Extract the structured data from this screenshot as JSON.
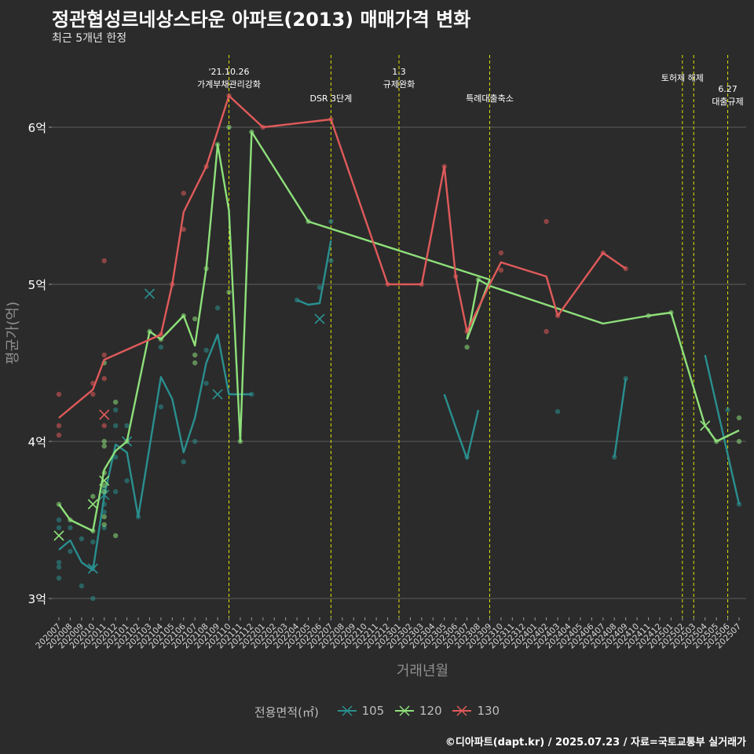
{
  "title": "정관협성르네상스타운 아파트(2013) 매매가격 변화",
  "subtitle": "최근 5개년 한정",
  "caption": "©디아파트(dapt.kr) / 2025.07.23 / 자료=국토교통부 실거래가",
  "legend": {
    "title": "전용면적(㎡)",
    "items": [
      {
        "label": "105",
        "color": "#2a8f8f"
      },
      {
        "label": "120",
        "color": "#8ee07a"
      },
      {
        "label": "130",
        "color": "#e05a5a"
      }
    ]
  },
  "chart_data": {
    "type": "line",
    "xlabel": "거래년월",
    "ylabel": "평균가(억)",
    "ylim": [
      2.88,
      6.5
    ],
    "grid": true,
    "legend_position": "bottom",
    "categories": [
      "202007",
      "202008",
      "202009",
      "202010",
      "202011",
      "202012",
      "202101",
      "202102",
      "202103",
      "202104",
      "202105",
      "202106",
      "202107",
      "202108",
      "202109",
      "202110",
      "202111",
      "202112",
      "202201",
      "202202",
      "202203",
      "202204",
      "202205",
      "202206",
      "202207",
      "202208",
      "202209",
      "202210",
      "202211",
      "202212",
      "202301",
      "202302",
      "202303",
      "202304",
      "202305",
      "202306",
      "202307",
      "202308",
      "202309",
      "202310",
      "202311",
      "202312",
      "202401",
      "202402",
      "202403",
      "202404",
      "202405",
      "202406",
      "202407",
      "202408",
      "202409",
      "202410",
      "202411",
      "202412",
      "202501",
      "202502",
      "202503",
      "202504",
      "202505",
      "202506",
      "202507"
    ],
    "y_ticks": [
      {
        "value": 3,
        "label": "3억"
      },
      {
        "value": 4,
        "label": "4억"
      },
      {
        "value": 5,
        "label": "5억"
      },
      {
        "value": 6,
        "label": "6억"
      }
    ],
    "events": [
      {
        "month": "202110",
        "lines": [
          "'21.10.26",
          "가계부채관리강화"
        ]
      },
      {
        "month": "202207",
        "lines": [
          "DSR 3단계"
        ]
      },
      {
        "month": "202301",
        "lines": [
          "1.3",
          "규제완화"
        ]
      },
      {
        "month": "202309",
        "lines": [
          "특례대출축소"
        ]
      },
      {
        "month": "202502",
        "lines": [
          "토허제 해제"
        ]
      },
      {
        "month": "202503",
        "lines": []
      },
      {
        "month": "202506",
        "lines": [
          "6.27",
          "대출규제"
        ]
      }
    ],
    "series": [
      {
        "name": "105",
        "color": "#2a8f8f",
        "line": [
          [
            [
              "202007",
              3.31
            ],
            [
              "202008",
              3.37
            ],
            [
              "202009",
              3.23
            ],
            [
              "202010",
              3.18
            ],
            [
              "202011",
              3.65
            ],
            [
              "202012",
              3.98
            ],
            [
              "202101",
              3.93
            ],
            [
              "202102",
              3.52
            ],
            [
              "202104",
              4.41
            ],
            [
              "202105",
              4.27
            ],
            [
              "202106",
              3.93
            ],
            [
              "202107",
              4.15
            ],
            [
              "202108",
              4.5
            ],
            [
              "202109",
              4.68
            ],
            [
              "202110",
              4.3
            ],
            [
              "202111",
              4.3
            ],
            [
              "202112",
              4.3
            ]
          ],
          [
            [
              "202204",
              4.9
            ],
            [
              "202205",
              4.87
            ],
            [
              "202206",
              4.88
            ],
            [
              "202207",
              5.28
            ]
          ],
          [
            [
              "202305",
              4.3
            ],
            [
              "202306",
              4.09
            ],
            [
              "202307",
              3.89
            ],
            [
              "202308",
              4.2
            ]
          ],
          [
            [
              "202408",
              3.9
            ],
            [
              "202409",
              4.4
            ]
          ],
          [
            [
              "202504",
              4.55
            ],
            [
              "202507",
              3.6
            ]
          ]
        ],
        "points": [
          [
            "202007",
            3.5
          ],
          [
            "202007",
            3.45
          ],
          [
            "202007",
            3.23
          ],
          [
            "202007",
            3.2
          ],
          [
            "202007",
            3.13
          ],
          [
            "202008",
            3.45
          ],
          [
            "202008",
            3.3
          ],
          [
            "202009",
            3.38
          ],
          [
            "202009",
            3.08
          ],
          [
            "202010",
            3.36
          ],
          [
            "202010",
            3.2
          ],
          [
            "202010",
            3.0
          ],
          [
            "202011",
            3.7
          ],
          [
            "202011",
            3.6
          ],
          [
            "202011",
            3.55
          ],
          [
            "202011",
            3.45
          ],
          [
            "202012",
            4.2
          ],
          [
            "202012",
            4.1
          ],
          [
            "202012",
            3.9
          ],
          [
            "202012",
            3.68
          ],
          [
            "202101",
            4.1
          ],
          [
            "202101",
            3.75
          ],
          [
            "202102",
            3.52
          ],
          [
            "202104",
            4.6
          ],
          [
            "202104",
            4.22
          ],
          [
            "202106",
            3.87
          ],
          [
            "202107",
            4.0
          ],
          [
            "202108",
            4.58
          ],
          [
            "202108",
            4.37
          ],
          [
            "202109",
            4.85
          ],
          [
            "202112",
            4.3
          ],
          [
            "202204",
            4.9
          ],
          [
            "202206",
            4.98
          ],
          [
            "202207",
            5.15
          ],
          [
            "202207",
            5.4
          ],
          [
            "202307",
            3.9
          ],
          [
            "202403",
            4.19
          ],
          [
            "202408",
            3.9
          ],
          [
            "202409",
            4.4
          ],
          [
            "202506",
            4.2
          ],
          [
            "202507",
            3.6
          ]
        ],
        "cross_marks": [
          [
            "202010",
            3.19
          ],
          [
            "202011",
            3.66
          ],
          [
            "202101",
            4.0
          ],
          [
            "202103",
            4.94
          ],
          [
            "202109",
            4.3
          ],
          [
            "202206",
            4.78
          ]
        ]
      },
      {
        "name": "120",
        "color": "#8ee07a",
        "line": [
          [
            [
              "202007",
              3.6
            ],
            [
              "202008",
              3.5
            ],
            [
              "202010",
              3.43
            ],
            [
              "202011",
              3.82
            ],
            [
              "202012",
              3.94
            ],
            [
              "202101",
              4.0
            ],
            [
              "202103",
              4.7
            ],
            [
              "202104",
              4.65
            ],
            [
              "202106",
              4.8
            ],
            [
              "202107",
              4.61
            ],
            [
              "202108",
              5.1
            ],
            [
              "202109",
              5.89
            ],
            [
              "202110",
              5.47
            ],
            [
              "202111",
              4.0
            ],
            [
              "202112",
              5.97
            ],
            [
              "202205",
              5.4
            ],
            [
              "202309",
              5.03
            ],
            [
              "202307",
              4.65
            ]
          ],
          [
            [
              "202307",
              4.65
            ],
            [
              "202308",
              5.03
            ],
            [
              "202309",
              4.99
            ],
            [
              "202407",
              4.75
            ],
            [
              "202411",
              4.8
            ],
            [
              "202501",
              4.82
            ],
            [
              "202504",
              4.1
            ],
            [
              "202505",
              4.0
            ],
            [
              "202507",
              4.07
            ]
          ]
        ],
        "points": [
          [
            "202007",
            3.6
          ],
          [
            "202008",
            3.5
          ],
          [
            "202010",
            3.65
          ],
          [
            "202010",
            3.43
          ],
          [
            "202011",
            4.5
          ],
          [
            "202011",
            4.0
          ],
          [
            "202011",
            3.97
          ],
          [
            "202011",
            3.8
          ],
          [
            "202011",
            3.72
          ],
          [
            "202011",
            3.68
          ],
          [
            "202011",
            3.52
          ],
          [
            "202011",
            3.47
          ],
          [
            "202012",
            4.25
          ],
          [
            "202012",
            3.4
          ],
          [
            "202101",
            4.0
          ],
          [
            "202103",
            4.7
          ],
          [
            "202104",
            4.65
          ],
          [
            "202106",
            4.8
          ],
          [
            "202107",
            4.78
          ],
          [
            "202107",
            4.55
          ],
          [
            "202107",
            4.5
          ],
          [
            "202108",
            5.1
          ],
          [
            "202109",
            5.89
          ],
          [
            "202110",
            6.0
          ],
          [
            "202110",
            4.95
          ],
          [
            "202111",
            4.0
          ],
          [
            "202112",
            5.97
          ],
          [
            "202205",
            5.4
          ],
          [
            "202307",
            4.6
          ],
          [
            "202308",
            5.03
          ],
          [
            "202411",
            4.8
          ],
          [
            "202501",
            4.82
          ],
          [
            "202505",
            4.0
          ],
          [
            "202507",
            4.15
          ],
          [
            "202507",
            4.0
          ]
        ],
        "cross_marks": [
          [
            "202007",
            3.4
          ],
          [
            "202010",
            3.6
          ],
          [
            "202011",
            3.75
          ],
          [
            "202504",
            4.1
          ]
        ]
      },
      {
        "name": "130",
        "color": "#e05a5a",
        "line": [
          [
            [
              "202007",
              4.15
            ],
            [
              "202010",
              4.33
            ],
            [
              "202011",
              4.52
            ],
            [
              "202104",
              4.68
            ],
            [
              "202105",
              5.0
            ],
            [
              "202106",
              5.46
            ],
            [
              "202108",
              5.75
            ],
            [
              "202110",
              6.2
            ],
            [
              "202201",
              6.0
            ],
            [
              "202207",
              6.05
            ],
            [
              "202212",
              5.0
            ],
            [
              "202303",
              5.0
            ],
            [
              "202305",
              5.75
            ],
            [
              "202306",
              5.05
            ],
            [
              "202307",
              4.7
            ],
            [
              "202309",
              5.0
            ],
            [
              "202310",
              5.14
            ],
            [
              "202402",
              5.05
            ],
            [
              "202403",
              4.8
            ],
            [
              "202407",
              5.2
            ],
            [
              "202409",
              5.1
            ]
          ]
        ],
        "points": [
          [
            "202007",
            4.3
          ],
          [
            "202007",
            4.1
          ],
          [
            "202007",
            4.04
          ],
          [
            "202010",
            4.37
          ],
          [
            "202010",
            4.3
          ],
          [
            "202011",
            5.15
          ],
          [
            "202011",
            4.55
          ],
          [
            "202011",
            4.4
          ],
          [
            "202011",
            4.1
          ],
          [
            "202104",
            4.68
          ],
          [
            "202105",
            5.0
          ],
          [
            "202106",
            5.58
          ],
          [
            "202106",
            5.35
          ],
          [
            "202108",
            5.75
          ],
          [
            "202110",
            6.2
          ],
          [
            "202201",
            6.0
          ],
          [
            "202207",
            6.05
          ],
          [
            "202212",
            5.0
          ],
          [
            "202303",
            5.0
          ],
          [
            "202305",
            5.75
          ],
          [
            "202306",
            5.05
          ],
          [
            "202307",
            4.7
          ],
          [
            "202310",
            5.2
          ],
          [
            "202310",
            5.09
          ],
          [
            "202402",
            5.4
          ],
          [
            "202402",
            4.7
          ],
          [
            "202403",
            4.8
          ],
          [
            "202407",
            5.2
          ],
          [
            "202409",
            5.1
          ]
        ],
        "cross_marks": [
          [
            "202011",
            4.17
          ]
        ]
      }
    ]
  }
}
